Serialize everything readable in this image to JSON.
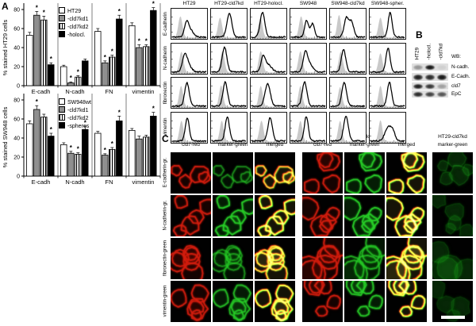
{
  "labels": {
    "a": "A",
    "b": "B",
    "c": "C"
  },
  "chart_data": [
    {
      "type": "bar",
      "title": "",
      "ylabel": "% stained HT29 cells",
      "xlabel": "",
      "ylim": [
        0,
        80
      ],
      "yticks": [
        0,
        20,
        40,
        60,
        80
      ],
      "categories": [
        "E-cadh",
        "N-cadh",
        "FN",
        "vimentin"
      ],
      "series": [
        {
          "name": "HT29",
          "fill": "white",
          "values": [
            53,
            20,
            57,
            63
          ],
          "errors": [
            3,
            1.5,
            3,
            3
          ],
          "sig": [
            false,
            false,
            false,
            false
          ]
        },
        {
          "name": "-cld7kd1",
          "fill": "gray",
          "values": [
            74,
            3,
            24,
            40
          ],
          "errors": [
            4,
            1,
            2,
            3
          ],
          "sig": [
            true,
            true,
            true,
            true
          ]
        },
        {
          "name": "-cld7kd2",
          "fill": "stripes",
          "values": [
            69,
            9,
            30,
            41
          ],
          "errors": [
            4,
            1.5,
            2,
            2
          ],
          "sig": [
            true,
            true,
            true,
            true
          ]
        },
        {
          "name": "-holocl.",
          "fill": "black",
          "values": [
            22,
            26,
            70,
            79
          ],
          "errors": [
            2,
            2,
            4,
            3
          ],
          "sig": [
            true,
            false,
            true,
            true
          ]
        }
      ],
      "legend_position": "top-inside",
      "grid": false
    },
    {
      "type": "bar",
      "title": "",
      "ylabel": "% stained SW948 cells",
      "xlabel": "",
      "ylim": [
        0,
        80
      ],
      "yticks": [
        0,
        20,
        40,
        60,
        80
      ],
      "categories": [
        "E-cadh",
        "N-cadh",
        "FN",
        "vimentin"
      ],
      "series": [
        {
          "name": "SW948wt",
          "fill": "white",
          "values": [
            55,
            33,
            45,
            48
          ],
          "errors": [
            3,
            2,
            2,
            2
          ],
          "sig": [
            false,
            false,
            false,
            false
          ]
        },
        {
          "name": "-cld7kd1",
          "fill": "gray",
          "values": [
            70,
            24,
            22,
            39
          ],
          "errors": [
            4,
            2,
            1.5,
            3
          ],
          "sig": [
            true,
            true,
            true,
            false
          ]
        },
        {
          "name": "-cld7kd2",
          "fill": "stripes",
          "values": [
            62,
            23,
            28,
            41
          ],
          "errors": [
            3,
            1.5,
            2,
            2
          ],
          "sig": [
            false,
            true,
            true,
            false
          ]
        },
        {
          "name": "-spheres",
          "fill": "black",
          "values": [
            42,
            49,
            58,
            63
          ],
          "errors": [
            3,
            3,
            5,
            4
          ],
          "sig": [
            true,
            true,
            true,
            true
          ]
        }
      ],
      "legend_position": "top-inside",
      "grid": false
    }
  ],
  "flow": {
    "columns": [
      "HT29",
      "HT29-cld7kd",
      "HT29-holocl.",
      "SW948",
      "SW948-cld7kd",
      "SW948-spher."
    ],
    "rows": [
      "E-cadherin",
      "N-cadherin",
      "fibronectin",
      "vimentin"
    ],
    "control_color": "#c9c9c9",
    "cells": [
      [
        {
          "g": [
            0.25,
            0.8,
            0.085
          ],
          "b": [
            [
              0.43,
              0.55,
              0.09
            ],
            [
              0.56,
              0.22,
              0.11
            ]
          ]
        },
        {
          "g": [
            0.25,
            0.75,
            0.085
          ],
          "b": [
            [
              0.52,
              0.9,
              0.1
            ]
          ]
        },
        {
          "g": [
            0.27,
            0.75,
            0.085
          ],
          "b": [
            [
              0.33,
              0.93,
              0.095
            ]
          ]
        },
        {
          "g": [
            0.3,
            0.8,
            0.085
          ],
          "b": [
            [
              0.46,
              0.62,
              0.08
            ],
            [
              0.63,
              0.5,
              0.08
            ]
          ]
        },
        {
          "g": [
            0.25,
            0.85,
            0.08
          ],
          "b": [
            [
              0.46,
              0.72,
              0.09
            ],
            [
              0.61,
              0.58,
              0.09
            ]
          ]
        },
        {
          "g": [
            0.3,
            0.75,
            0.085
          ],
          "b": [
            [
              0.58,
              0.92,
              0.08
            ]
          ]
        }
      ],
      [
        {
          "g": [
            0.28,
            0.78,
            0.085
          ],
          "b": [
            [
              0.38,
              0.62,
              0.1
            ],
            [
              0.5,
              0.2,
              0.12
            ]
          ]
        },
        {
          "g": [
            0.32,
            0.8,
            0.085
          ],
          "b": [
            [
              0.38,
              0.93,
              0.095
            ]
          ]
        },
        {
          "g": [
            0.28,
            0.8,
            0.085
          ],
          "b": [
            [
              0.35,
              0.55,
              0.09
            ],
            [
              0.5,
              0.25,
              0.14
            ]
          ]
        },
        {
          "g": [
            0.28,
            0.8,
            0.085
          ],
          "b": [
            [
              0.42,
              0.68,
              0.09
            ],
            [
              0.55,
              0.3,
              0.12
            ]
          ]
        },
        {
          "g": [
            0.3,
            0.78,
            0.085
          ],
          "b": [
            [
              0.38,
              0.85,
              0.09
            ]
          ]
        },
        {
          "g": [
            0.3,
            0.72,
            0.085
          ],
          "b": [
            [
              0.52,
              0.9,
              0.085
            ]
          ]
        }
      ],
      [
        {
          "g": [
            0.27,
            0.78,
            0.08
          ],
          "b": [
            [
              0.44,
              0.88,
              0.09
            ]
          ]
        },
        {
          "g": [
            0.28,
            0.8,
            0.08
          ],
          "b": [
            [
              0.4,
              0.9,
              0.09
            ]
          ]
        },
        {
          "g": [
            0.28,
            0.78,
            0.08
          ],
          "b": [
            [
              0.48,
              0.85,
              0.105
            ]
          ]
        },
        {
          "g": [
            0.28,
            0.78,
            0.08
          ],
          "b": [
            [
              0.4,
              0.9,
              0.095
            ]
          ]
        },
        {
          "g": [
            0.28,
            0.74,
            0.08
          ],
          "b": [
            [
              0.4,
              0.88,
              0.095
            ]
          ]
        },
        {
          "g": [
            0.3,
            0.78,
            0.08
          ],
          "b": [
            [
              0.56,
              0.9,
              0.085
            ]
          ]
        }
      ],
      [
        {
          "g": [
            0.28,
            0.78,
            0.08
          ],
          "b": [
            [
              0.45,
              0.88,
              0.08
            ]
          ]
        },
        {
          "g": [
            0.3,
            0.78,
            0.08
          ],
          "b": [
            [
              0.46,
              0.9,
              0.085
            ]
          ]
        },
        {
          "g": [
            0.3,
            0.78,
            0.085
          ],
          "b": [
            [
              0.55,
              0.88,
              0.09
            ]
          ]
        },
        {
          "g": [
            0.28,
            0.78,
            0.08
          ],
          "b": [
            [
              0.45,
              0.92,
              0.08
            ]
          ]
        },
        {
          "g": [
            0.28,
            0.78,
            0.08
          ],
          "b": [
            [
              0.45,
              0.92,
              0.095
            ]
          ]
        },
        {
          "g": [
            0.3,
            0.8,
            0.08
          ],
          "b": [
            [
              0.52,
              0.5,
              0.13
            ],
            [
              0.66,
              0.3,
              0.09
            ]
          ]
        }
      ]
    ]
  },
  "wb": {
    "title": "WB:",
    "lanes": [
      "HT29",
      "-holocl.",
      "-cld7kd"
    ],
    "rows": [
      {
        "name": "N-cadh.",
        "bands": [
          0.35,
          0.95,
          0.08
        ]
      },
      {
        "name": "E-Cadh.",
        "bands": [
          0.9,
          0.85,
          0.95
        ]
      },
      {
        "name": "cld7",
        "bands": [
          0.9,
          0.8,
          0.3
        ]
      },
      {
        "name": "EpC",
        "bands": [
          0.85,
          0.75,
          0.65
        ]
      }
    ]
  },
  "confocal": {
    "groups": [
      {
        "title": "HT29",
        "columns": [
          {
            "label": "cld7-red",
            "type": "red"
          },
          {
            "label": "marker-green",
            "type": "green"
          },
          {
            "label": "merged",
            "type": "merged"
          }
        ]
      },
      {
        "title": "HT29-holoclone",
        "columns": [
          {
            "label": "cld7-red",
            "type": "red"
          },
          {
            "label": "marker-green",
            "type": "green"
          },
          {
            "label": "merged",
            "type": "merged"
          }
        ]
      },
      {
        "title": "HT29-cld7kd",
        "columns": [
          {
            "label": "marker-green",
            "type": "green_dim"
          }
        ]
      }
    ],
    "rows": [
      "E-cadherin-gr.",
      "N-cadherin-gr.",
      "fibronectin-green",
      "vimentin-green"
    ],
    "green_intensity": [
      [
        0.5,
        0.95,
        0.55,
        0.8
      ],
      [
        0.95,
        0.95,
        0.7,
        0.9
      ],
      [
        0.2,
        0.16,
        0.16,
        0.12
      ]
    ],
    "red_color": "#d21e0f",
    "green_color": "#28cd28"
  }
}
